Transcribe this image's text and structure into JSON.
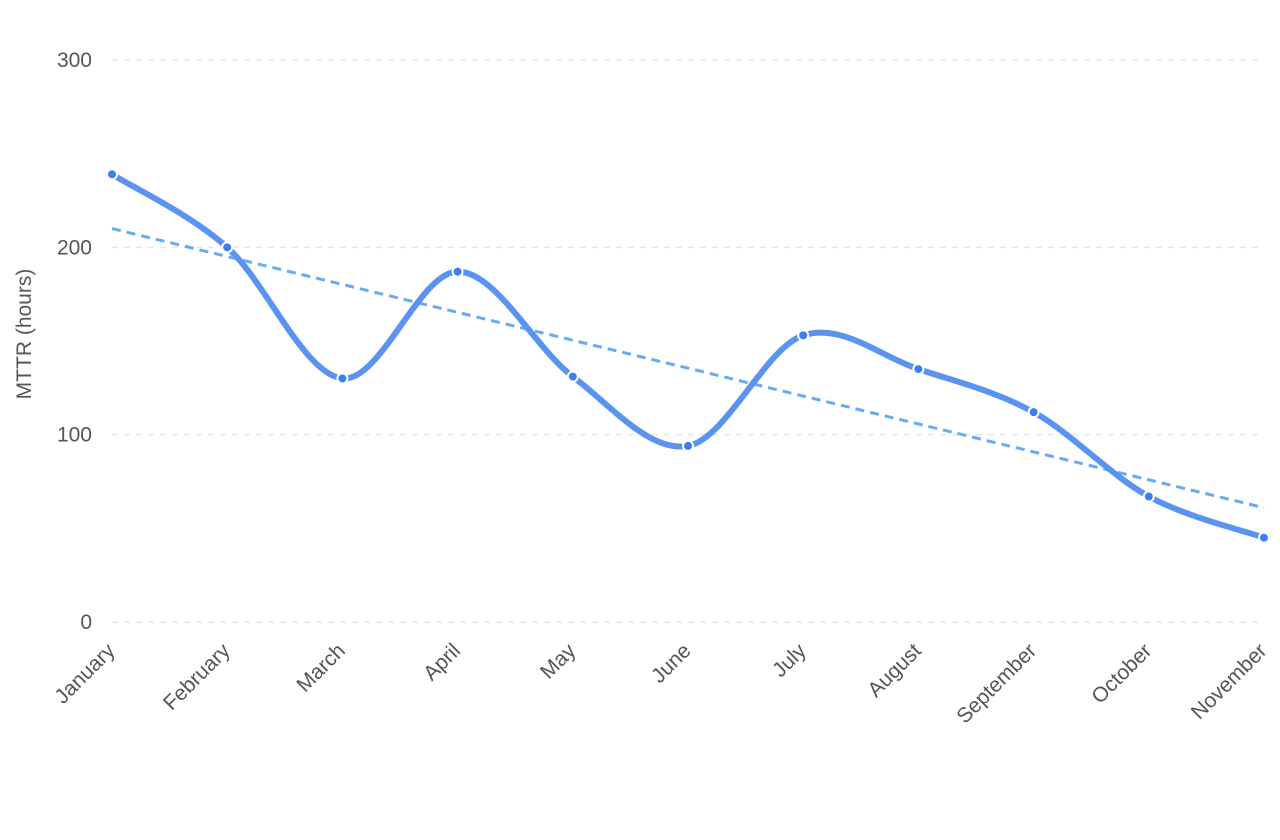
{
  "chart_data": {
    "type": "line",
    "title": "",
    "xlabel": "",
    "ylabel": "MTTR (hours)",
    "ylim": [
      0,
      300
    ],
    "yticks": [
      0,
      100,
      200,
      300
    ],
    "grid": true,
    "legend": "none",
    "categories": [
      "January",
      "February",
      "March",
      "April",
      "May",
      "June",
      "July",
      "August",
      "September",
      "October",
      "November"
    ],
    "series": [
      {
        "values": [
          239,
          200,
          130,
          187,
          131,
          94,
          153,
          135,
          112,
          67,
          45
        ],
        "color": "#5b93f0",
        "style": "smooth"
      }
    ],
    "trendline": {
      "start": 210,
      "end": 61,
      "color": "#6aaaf2",
      "style": "dashed"
    }
  }
}
